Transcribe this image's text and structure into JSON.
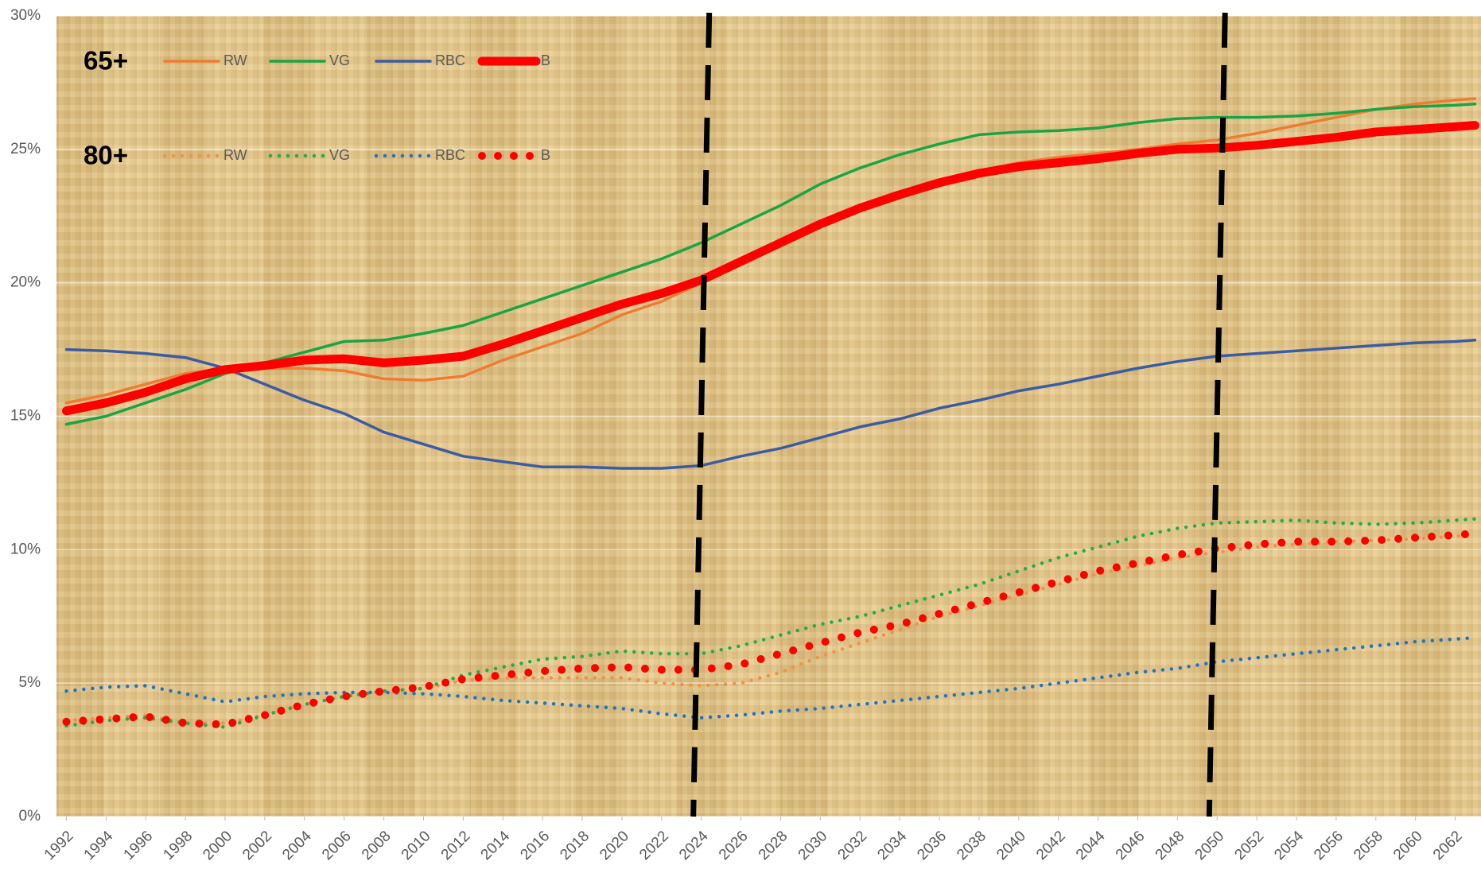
{
  "chart_data": {
    "type": "line",
    "x": [
      1992,
      1994,
      1996,
      1998,
      2000,
      2002,
      2004,
      2006,
      2008,
      2010,
      2012,
      2014,
      2016,
      2018,
      2020,
      2022,
      2024,
      2026,
      2028,
      2030,
      2032,
      2034,
      2036,
      2038,
      2040,
      2042,
      2044,
      2046,
      2048,
      2050,
      2052,
      2054,
      2056,
      2058,
      2060,
      2062,
      2063
    ],
    "xlim": [
      1991.5,
      2063.3
    ],
    "xticks": [
      1992,
      1994,
      1996,
      1998,
      2000,
      2002,
      2004,
      2006,
      2008,
      2010,
      2012,
      2014,
      2016,
      2018,
      2020,
      2022,
      2024,
      2026,
      2028,
      2030,
      2032,
      2034,
      2036,
      2038,
      2040,
      2042,
      2044,
      2046,
      2048,
      2050,
      2052,
      2054,
      2056,
      2058,
      2060,
      2062
    ],
    "ylim": [
      0,
      30
    ],
    "yticks": [
      {
        "value": 0,
        "label": "0%"
      },
      {
        "value": 5,
        "label": "5%"
      },
      {
        "value": 10,
        "label": "10%"
      },
      {
        "value": 15,
        "label": "15%"
      },
      {
        "value": 20,
        "label": "20%"
      },
      {
        "value": 25,
        "label": "25%"
      },
      {
        "value": 30,
        "label": "30%"
      }
    ],
    "grid": true,
    "vlines": [
      2024,
      2050
    ],
    "groups": [
      {
        "label": "65+",
        "style": "solid",
        "series": [
          {
            "name": "RW",
            "color": "#ed7d31",
            "values": [
              15.5,
              15.8,
              16.2,
              16.6,
              16.8,
              16.8,
              16.8,
              16.7,
              16.4,
              16.35,
              16.5,
              17.1,
              17.6,
              18.1,
              18.8,
              19.3,
              20.0,
              20.8,
              21.5,
              22.2,
              22.8,
              23.3,
              23.8,
              24.2,
              24.5,
              24.7,
              24.85,
              25.0,
              25.2,
              25.35,
              25.6,
              25.9,
              26.2,
              26.5,
              26.7,
              26.85,
              26.9
            ]
          },
          {
            "name": "VG",
            "color": "#1aa443",
            "values": [
              14.7,
              15.0,
              15.5,
              16.0,
              16.6,
              17.0,
              17.4,
              17.8,
              17.85,
              18.1,
              18.4,
              18.9,
              19.4,
              19.9,
              20.4,
              20.9,
              21.5,
              22.2,
              22.9,
              23.7,
              24.3,
              24.8,
              25.2,
              25.55,
              25.65,
              25.7,
              25.8,
              26.0,
              26.15,
              26.2,
              26.2,
              26.25,
              26.35,
              26.5,
              26.6,
              26.65,
              26.7
            ]
          },
          {
            "name": "RBC",
            "color": "#3b5ba3",
            "values": [
              17.5,
              17.45,
              17.35,
              17.2,
              16.8,
              16.2,
              15.6,
              15.1,
              14.4,
              13.95,
              13.5,
              13.3,
              13.1,
              13.1,
              13.05,
              13.05,
              13.15,
              13.5,
              13.8,
              14.2,
              14.6,
              14.9,
              15.3,
              15.6,
              15.95,
              16.2,
              16.5,
              16.8,
              17.05,
              17.25,
              17.35,
              17.45,
              17.55,
              17.65,
              17.75,
              17.8,
              17.85
            ]
          },
          {
            "name": "B",
            "color": "#ff0000",
            "values": [
              15.2,
              15.5,
              15.9,
              16.4,
              16.75,
              16.9,
              17.1,
              17.15,
              17.0,
              17.1,
              17.25,
              17.7,
              18.2,
              18.7,
              19.2,
              19.6,
              20.1,
              20.8,
              21.5,
              22.2,
              22.8,
              23.3,
              23.75,
              24.1,
              24.35,
              24.5,
              24.65,
              24.85,
              25.0,
              25.05,
              25.15,
              25.3,
              25.45,
              25.65,
              25.75,
              25.85,
              25.9
            ]
          }
        ]
      },
      {
        "label": "80+",
        "style": "dotted",
        "series": [
          {
            "name": "RW",
            "color": "#f0924a",
            "values": [
              3.6,
              3.7,
              3.8,
              3.5,
              3.5,
              3.8,
              4.2,
              4.5,
              4.7,
              4.8,
              5.1,
              5.2,
              5.2,
              5.2,
              5.2,
              5.0,
              4.9,
              5.0,
              5.4,
              6.0,
              6.5,
              7.0,
              7.5,
              7.9,
              8.3,
              8.7,
              9.1,
              9.4,
              9.7,
              9.9,
              10.1,
              10.2,
              10.3,
              10.35,
              10.4,
              10.5,
              10.55
            ]
          },
          {
            "name": "VG",
            "color": "#1fae48",
            "values": [
              3.4,
              3.6,
              3.7,
              3.5,
              3.35,
              3.8,
              4.2,
              4.5,
              4.7,
              4.8,
              5.3,
              5.6,
              5.9,
              6.0,
              6.2,
              6.1,
              6.1,
              6.4,
              6.8,
              7.2,
              7.5,
              7.9,
              8.3,
              8.7,
              9.2,
              9.7,
              10.1,
              10.5,
              10.8,
              11.0,
              11.05,
              11.1,
              11.0,
              10.95,
              11.0,
              11.1,
              11.15
            ]
          },
          {
            "name": "RBC",
            "color": "#1f74c6",
            "values": [
              4.7,
              4.85,
              4.9,
              4.6,
              4.3,
              4.5,
              4.6,
              4.65,
              4.65,
              4.6,
              4.5,
              4.35,
              4.25,
              4.15,
              4.05,
              3.85,
              3.7,
              3.8,
              3.95,
              4.05,
              4.2,
              4.35,
              4.5,
              4.65,
              4.8,
              5.0,
              5.2,
              5.4,
              5.55,
              5.8,
              5.95,
              6.1,
              6.25,
              6.4,
              6.55,
              6.65,
              6.7
            ]
          },
          {
            "name": "B",
            "color": "#ff0000",
            "values": [
              3.55,
              3.65,
              3.75,
              3.5,
              3.45,
              3.8,
              4.2,
              4.5,
              4.7,
              4.85,
              5.15,
              5.3,
              5.45,
              5.55,
              5.6,
              5.5,
              5.5,
              5.7,
              6.1,
              6.5,
              6.9,
              7.2,
              7.6,
              8.0,
              8.4,
              8.8,
              9.2,
              9.5,
              9.8,
              10.05,
              10.2,
              10.3,
              10.3,
              10.35,
              10.45,
              10.55,
              10.6
            ]
          }
        ]
      }
    ]
  }
}
